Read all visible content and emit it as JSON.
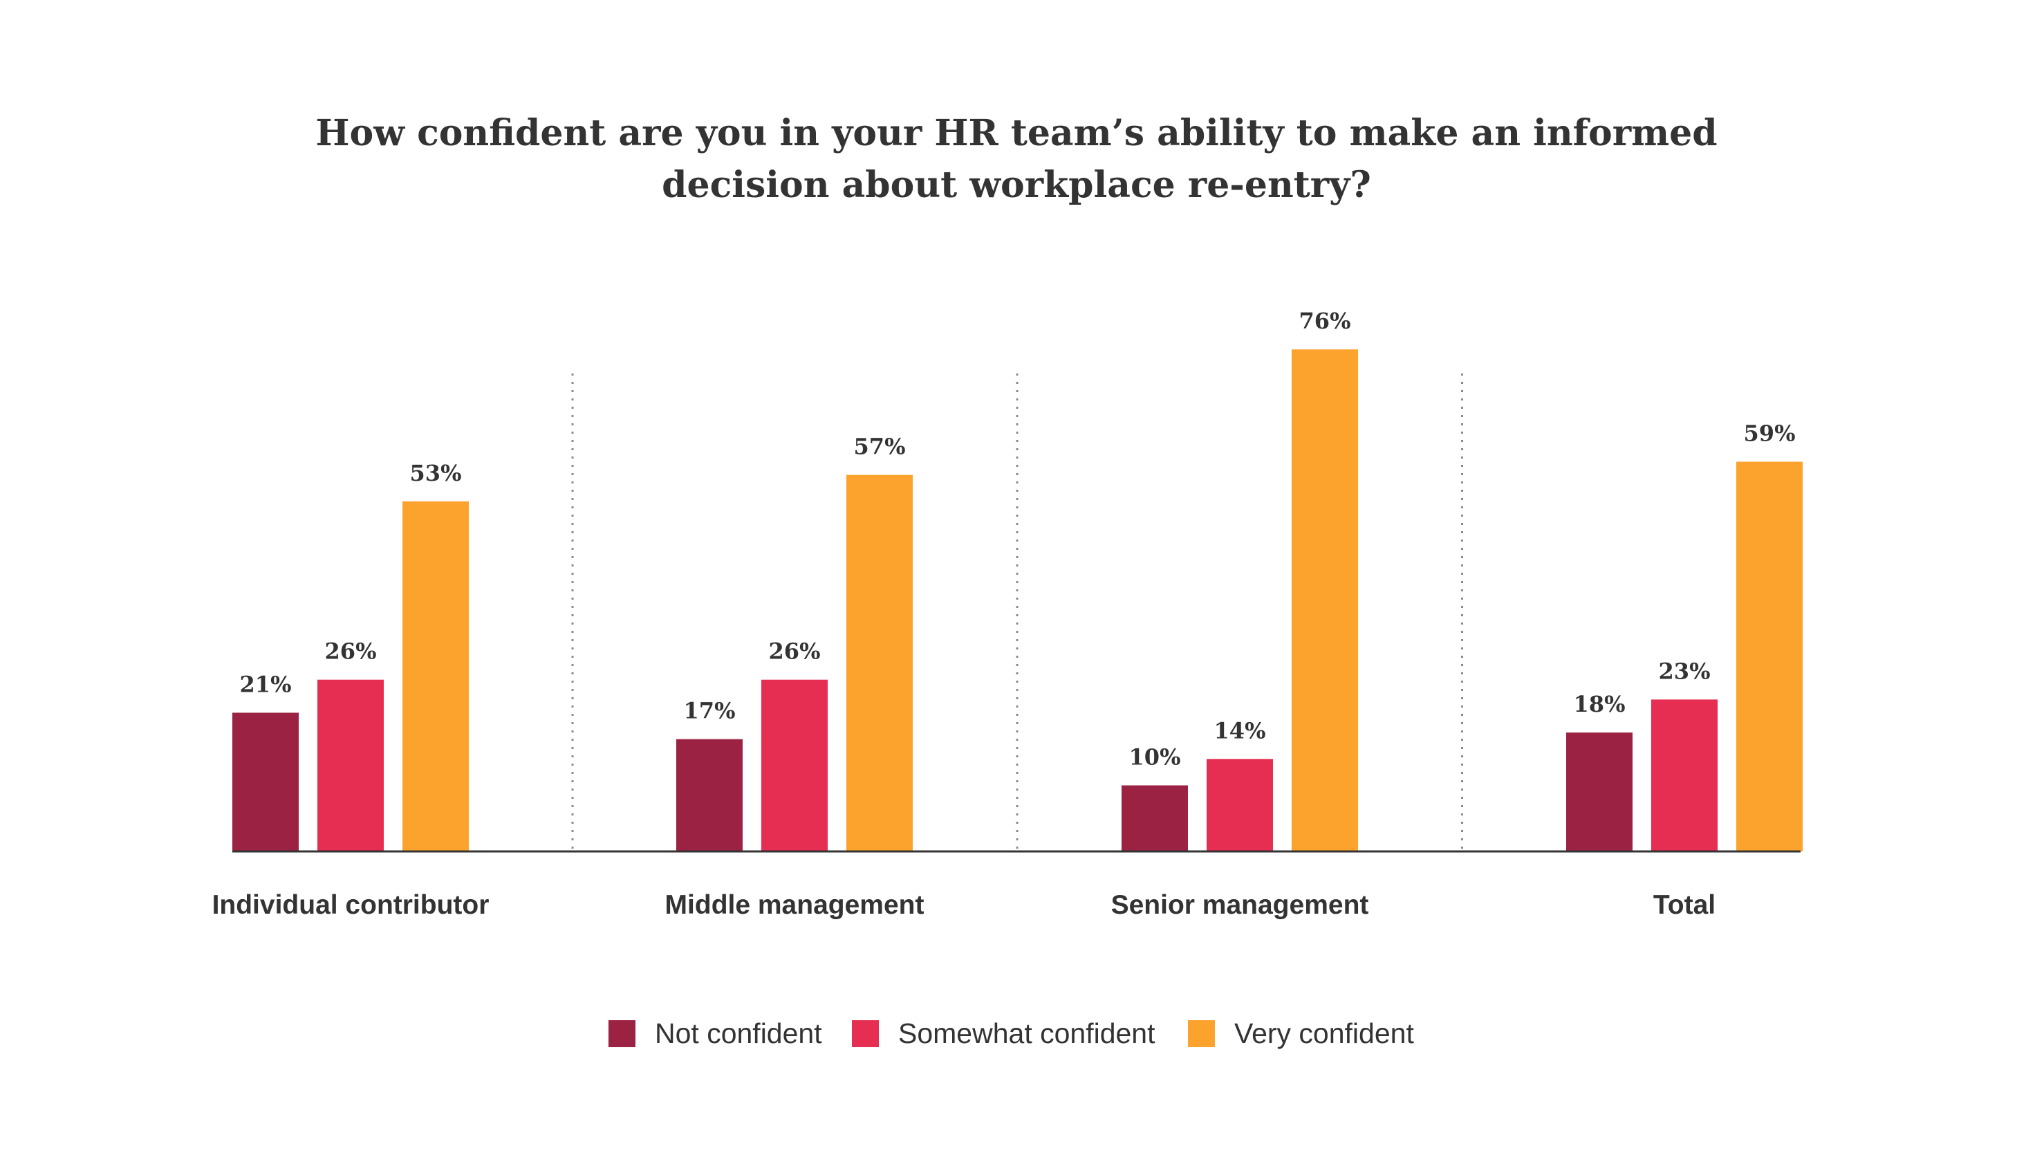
{
  "chart_data": {
    "type": "bar",
    "title_lines": [
      "How confident are you in your HR team’s ability to make an informed",
      "decision about workplace re-entry?"
    ],
    "categories": [
      "Individual contributor",
      "Middle management",
      "Senior management",
      "Total"
    ],
    "series": [
      {
        "name": "Not confident",
        "color": "#9b2242",
        "values": [
          21,
          17,
          10,
          18
        ],
        "labels": [
          "21%",
          "17%",
          "10%",
          "18%"
        ]
      },
      {
        "name": "Somewhat confident",
        "color": "#e52e52",
        "values": [
          26,
          26,
          14,
          23
        ],
        "labels": [
          "26%",
          "26%",
          "14%",
          "23%"
        ]
      },
      {
        "name": "Very confident",
        "color": "#fca32d",
        "values": [
          53,
          57,
          76,
          59
        ],
        "labels": [
          "53%",
          "57%",
          "76%",
          "59%"
        ]
      }
    ],
    "ylim": [
      0,
      100
    ],
    "grid": false,
    "legend_position": "bottom-center",
    "separators": "dotted vertical lines between groups"
  }
}
